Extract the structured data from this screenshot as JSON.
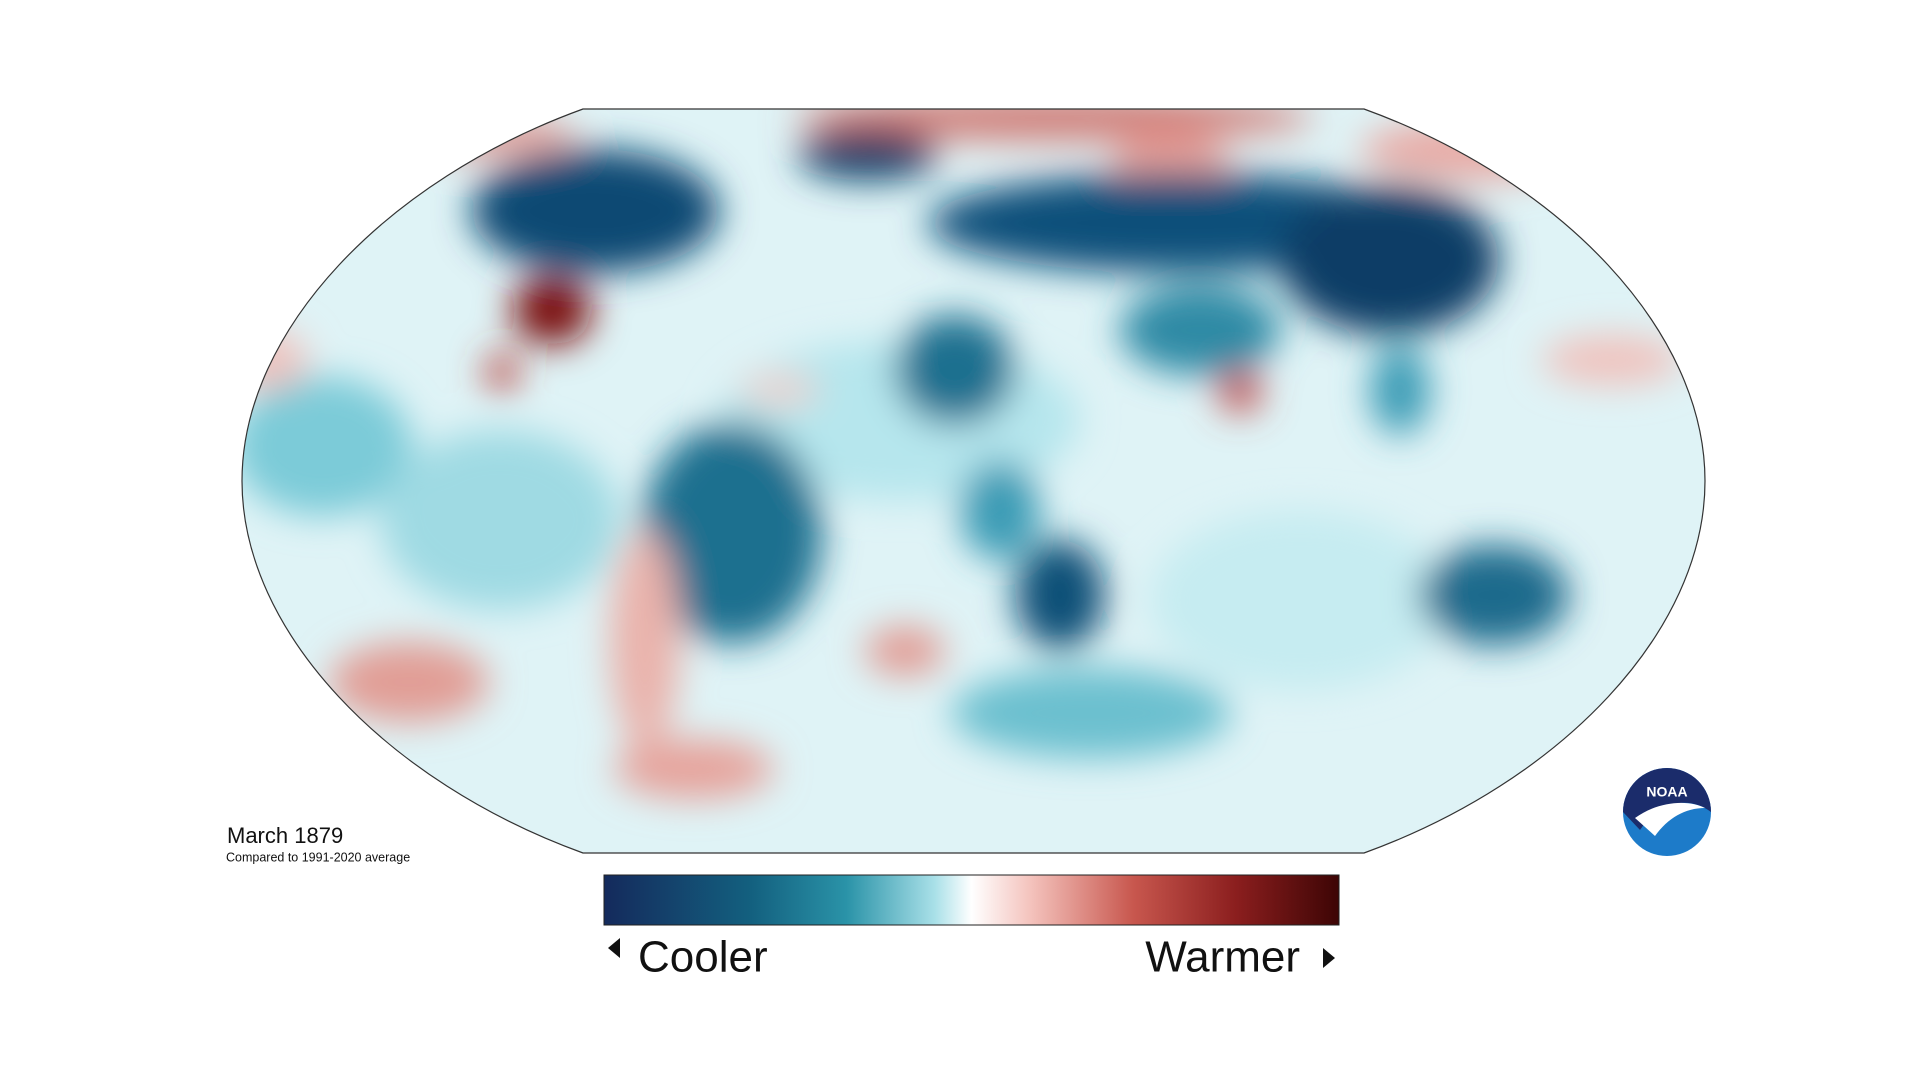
{
  "map": {
    "title": "March 1879",
    "subtitle": "Compared to 1991-2020 average"
  },
  "legend": {
    "low_label": "Cooler",
    "high_label": "Warmer"
  },
  "logo": {
    "text": "NOAA"
  }
}
